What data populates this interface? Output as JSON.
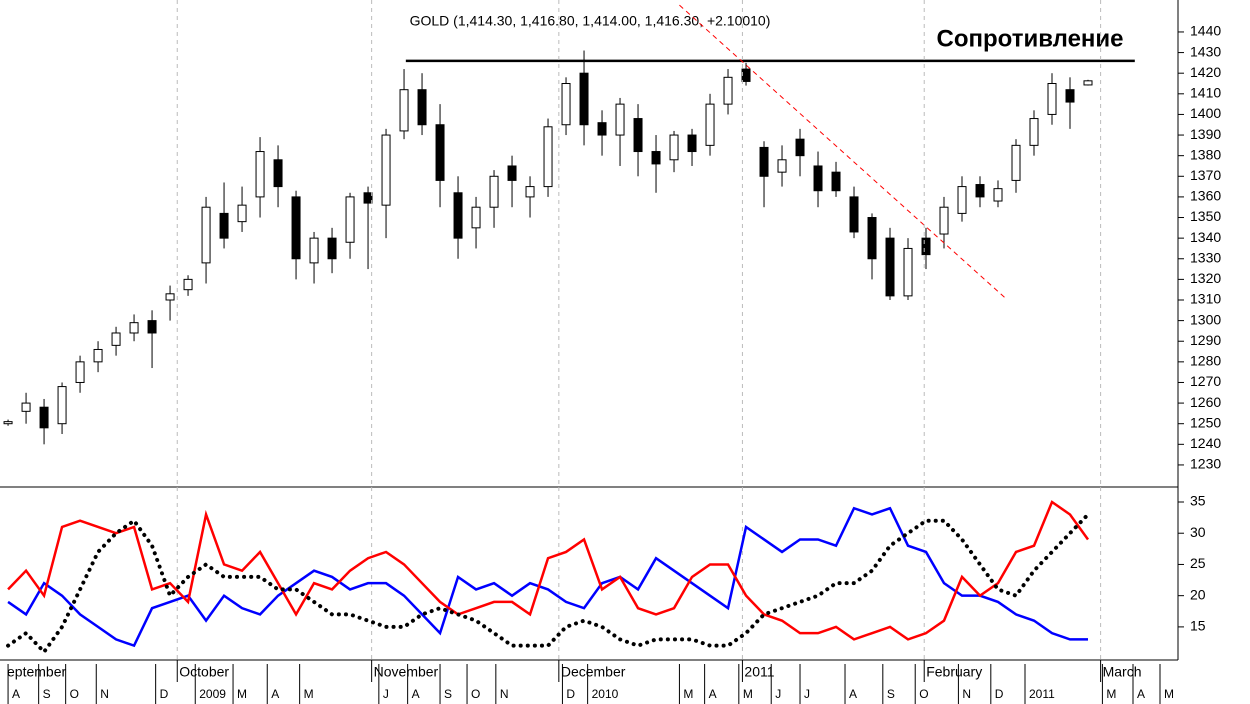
{
  "chart_data": [
    {
      "type": "candlestick",
      "title": "GOLD (1,414.30, 1,416.80, 1,414.00, 1,416.30, +2.10010)",
      "annotations": [
        {
          "text": "Сопротивление"
        }
      ],
      "open": [
        1250,
        1256,
        1258,
        1250,
        1270,
        1280,
        1288,
        1294,
        1300,
        1310,
        1315,
        1328,
        1352,
        1348,
        1360,
        1378,
        1360,
        1328,
        1340,
        1338,
        1362,
        1356,
        1392,
        1412,
        1395,
        1362,
        1345,
        1355,
        1375,
        1360,
        1365,
        1395,
        1420,
        1396,
        1390,
        1398,
        1382,
        1378,
        1390,
        1385,
        1405,
        1422,
        1384,
        1372,
        1388,
        1375,
        1372,
        1360,
        1350,
        1340,
        1312,
        1340,
        1342,
        1352,
        1366,
        1358,
        1368,
        1385,
        1400,
        1412,
        1414.3
      ],
      "high": [
        1252,
        1265,
        1262,
        1270,
        1283,
        1290,
        1297,
        1303,
        1305,
        1317,
        1322,
        1360,
        1367,
        1365,
        1389,
        1385,
        1363,
        1343,
        1345,
        1362,
        1365,
        1393,
        1422,
        1420,
        1405,
        1370,
        1360,
        1373,
        1380,
        1370,
        1398,
        1418,
        1431,
        1402,
        1408,
        1405,
        1390,
        1392,
        1393,
        1410,
        1422,
        1425,
        1387,
        1385,
        1393,
        1382,
        1377,
        1365,
        1352,
        1345,
        1340,
        1345,
        1360,
        1370,
        1370,
        1368,
        1388,
        1402,
        1420,
        1418,
        1416.8
      ],
      "low": [
        1249,
        1250,
        1240,
        1245,
        1265,
        1275,
        1283,
        1290,
        1277,
        1300,
        1312,
        1318,
        1335,
        1343,
        1350,
        1355,
        1320,
        1318,
        1323,
        1330,
        1325,
        1340,
        1388,
        1390,
        1355,
        1330,
        1335,
        1345,
        1355,
        1350,
        1360,
        1390,
        1385,
        1380,
        1375,
        1370,
        1362,
        1372,
        1375,
        1380,
        1400,
        1414,
        1355,
        1365,
        1370,
        1355,
        1360,
        1340,
        1320,
        1310,
        1310,
        1325,
        1335,
        1348,
        1355,
        1355,
        1362,
        1380,
        1395,
        1393,
        1414
      ],
      "close": [
        1251,
        1260,
        1248,
        1268,
        1280,
        1286,
        1294,
        1299,
        1294,
        1313,
        1320,
        1355,
        1340,
        1356,
        1382,
        1365,
        1330,
        1340,
        1330,
        1360,
        1357,
        1390,
        1412,
        1395,
        1368,
        1340,
        1355,
        1370,
        1368,
        1365,
        1394,
        1415,
        1395,
        1390,
        1405,
        1382,
        1376,
        1390,
        1382,
        1405,
        1418,
        1416,
        1370,
        1378,
        1380,
        1363,
        1363,
        1343,
        1330,
        1312,
        1335,
        1332,
        1355,
        1365,
        1360,
        1364,
        1385,
        1398,
        1415,
        1406,
        1416.3
      ],
      "up_color": "#ffffff",
      "down_color": "#000000",
      "lines": [
        {
          "x": [
            22.1,
            62.6
          ],
          "y": [
            1426,
            1426
          ],
          "color": "#000000",
          "dashed": false
        },
        {
          "x": [
            37.3,
            55.4
          ],
          "y": [
            1453,
            1311
          ],
          "color": "#ff0000",
          "dashed": true
        }
      ],
      "xlim": [
        -0.17,
        65
      ],
      "ylim": [
        1219.3,
        1455.5
      ],
      "yticks": [
        1230,
        1240,
        1250,
        1260,
        1270,
        1280,
        1290,
        1300,
        1310,
        1320,
        1330,
        1340,
        1350,
        1360,
        1370,
        1380,
        1390,
        1400,
        1410,
        1420,
        1430,
        1440
      ]
    },
    {
      "type": "line",
      "series": [
        {
          "color": "#0000ff",
          "style": "solid",
          "values": [
            19,
            17,
            22,
            20,
            17,
            15,
            13,
            12,
            18,
            19,
            20,
            16,
            20,
            18,
            17,
            20,
            22,
            24,
            23,
            21,
            22,
            22,
            20,
            17,
            14,
            23,
            21,
            22,
            20,
            22,
            21,
            19,
            18,
            22,
            23,
            21,
            26,
            24,
            22,
            20,
            18,
            31,
            29,
            27,
            29,
            29,
            28,
            34,
            33,
            34,
            28,
            27,
            22,
            20,
            20,
            19,
            17,
            16,
            14,
            13,
            13
          ]
        },
        {
          "color": "#ff0000",
          "style": "solid",
          "values": [
            21,
            24,
            20,
            31,
            32,
            31,
            30,
            31,
            21,
            22,
            19,
            33,
            25,
            24,
            27,
            22,
            17,
            22,
            21,
            24,
            26,
            27,
            25,
            22,
            19,
            17,
            18,
            19,
            19,
            17,
            26,
            27,
            29,
            21,
            23,
            18,
            17,
            18,
            23,
            25,
            25,
            20,
            17,
            16,
            14,
            14,
            15,
            13,
            14,
            15,
            13,
            14,
            16,
            23,
            20,
            22,
            27,
            28,
            35,
            33,
            29
          ]
        },
        {
          "color": "#000000",
          "style": "dotted",
          "values": [
            12,
            14,
            11,
            15,
            21,
            27,
            30,
            32,
            28,
            20,
            23,
            25,
            23,
            23,
            23,
            21,
            21,
            19,
            17,
            17,
            16,
            15,
            15,
            17,
            18,
            17,
            16,
            14,
            12,
            12,
            12,
            15,
            16,
            15,
            13,
            12,
            13,
            13,
            13,
            12,
            12,
            14,
            17,
            18,
            19,
            20,
            22,
            22,
            24,
            28,
            30,
            32,
            32,
            29,
            25,
            21,
            20,
            24,
            27,
            30,
            33
          ]
        }
      ],
      "xlim": [
        -0.17,
        65
      ],
      "ylim": [
        9.7,
        37.4
      ],
      "yticks": [
        15,
        20,
        25,
        30,
        35
      ],
      "xticks": [
        {
          "value": -0.17,
          "label": "eptember"
        },
        {
          "value": 9.4,
          "label": "October"
        },
        {
          "value": 20.2,
          "label": "November"
        },
        {
          "value": 30.6,
          "label": "December"
        },
        {
          "value": 40.8,
          "label": "2011"
        },
        {
          "value": 50.9,
          "label": "February"
        },
        {
          "value": 60.7,
          "label": "March"
        }
      ],
      "xticks2": [
        {
          "value": 0,
          "label": "A"
        },
        {
          "value": 1.7,
          "label": "S"
        },
        {
          "value": 3.2,
          "label": "O"
        },
        {
          "value": 4.9,
          "label": "N"
        },
        {
          "value": 8.2,
          "label": "D"
        },
        {
          "value": 10.4,
          "label": "2009"
        },
        {
          "value": 12.5,
          "label": "M"
        },
        {
          "value": 14.4,
          "label": "A"
        },
        {
          "value": 16.2,
          "label": "M"
        },
        {
          "value": 20.6,
          "label": "J"
        },
        {
          "value": 22.2,
          "label": "A"
        },
        {
          "value": 24,
          "label": "S"
        },
        {
          "value": 25.5,
          "label": "O"
        },
        {
          "value": 27.1,
          "label": "N"
        },
        {
          "value": 30.8,
          "label": "D"
        },
        {
          "value": 32.2,
          "label": "2010"
        },
        {
          "value": 37.3,
          "label": "M"
        },
        {
          "value": 38.7,
          "label": "A"
        },
        {
          "value": 40.6,
          "label": "M"
        },
        {
          "value": 42.4,
          "label": "J"
        },
        {
          "value": 44,
          "label": "J"
        },
        {
          "value": 46.5,
          "label": "A"
        },
        {
          "value": 48.6,
          "label": "S"
        },
        {
          "value": 50.4,
          "label": "O"
        },
        {
          "value": 52.8,
          "label": "N"
        },
        {
          "value": 54.6,
          "label": "D"
        },
        {
          "value": 56.5,
          "label": "2011"
        },
        {
          "value": 60.8,
          "label": "M"
        },
        {
          "value": 62.5,
          "label": "A"
        },
        {
          "value": 64,
          "label": "M"
        }
      ]
    }
  ]
}
